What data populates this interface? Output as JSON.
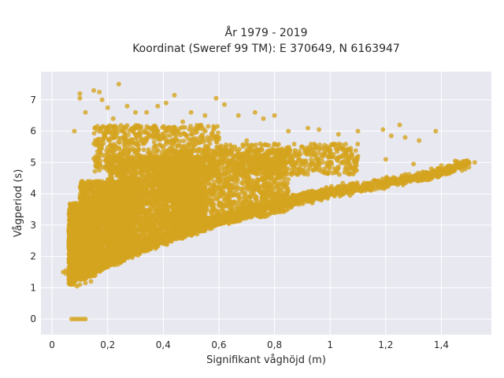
{
  "chart_data": {
    "type": "scatter",
    "title": "År 1979 - 2019",
    "subtitle": "Koordinat (Sweref 99 TM): E 370649, N 6163947",
    "xlabel": "Signifikant våghöjd (m)",
    "ylabel": "Vågperiod (s)",
    "xlim": [
      -0.04,
      1.58
    ],
    "ylim": [
      -0.5,
      7.9
    ],
    "x_ticks": [
      0,
      0.2,
      0.4,
      0.6,
      0.8,
      1,
      1.2,
      1.4
    ],
    "x_tick_labels": [
      "0",
      "0,2",
      "0,4",
      "0,6",
      "0,8",
      "1",
      "1,2",
      "1,4"
    ],
    "y_ticks": [
      0,
      1,
      2,
      3,
      4,
      5,
      6,
      7
    ],
    "y_tick_labels": [
      "0",
      "1",
      "2",
      "3",
      "4",
      "5",
      "6",
      "7"
    ],
    "grid": true,
    "legend": "none",
    "marker_color": "#D4A41F",
    "background": "#E8E8F1",
    "series": [
      {
        "points": [
          [
            0.07,
            0
          ],
          [
            0.08,
            0
          ],
          [
            0.09,
            0
          ],
          [
            0.1,
            0
          ],
          [
            0.11,
            0
          ],
          [
            0.12,
            0
          ],
          [
            0.04,
            1.5
          ],
          [
            0.05,
            1.45
          ],
          [
            0.05,
            1.55
          ],
          [
            0.06,
            1.5
          ],
          [
            0.07,
            1.2
          ],
          [
            0.08,
            1.1
          ],
          [
            0.09,
            1.05
          ],
          [
            0.1,
            1.1
          ],
          [
            0.12,
            1.15
          ],
          [
            0.14,
            1.2
          ],
          [
            0.07,
            1.8
          ],
          [
            0.08,
            2.2
          ],
          [
            0.09,
            2.6
          ],
          [
            0.1,
            3.0
          ],
          [
            0.11,
            3.3
          ],
          [
            0.12,
            3.6
          ],
          [
            0.08,
            6.0
          ],
          [
            0.1,
            7.2
          ],
          [
            0.1,
            7.05
          ],
          [
            0.12,
            6.6
          ],
          [
            0.15,
            7.3
          ],
          [
            0.17,
            7.25
          ],
          [
            0.18,
            7.0
          ],
          [
            0.2,
            6.75
          ],
          [
            0.22,
            6.4
          ],
          [
            0.24,
            7.5
          ],
          [
            0.27,
            6.8
          ],
          [
            0.3,
            6.6
          ],
          [
            0.34,
            6.6
          ],
          [
            0.38,
            6.8
          ],
          [
            0.41,
            6.9
          ],
          [
            0.44,
            7.15
          ],
          [
            0.47,
            6.3
          ],
          [
            0.5,
            6.6
          ],
          [
            0.55,
            6.5
          ],
          [
            0.59,
            7.05
          ],
          [
            0.62,
            6.85
          ],
          [
            0.67,
            6.5
          ],
          [
            0.73,
            6.6
          ],
          [
            0.76,
            6.4
          ],
          [
            0.8,
            6.5
          ],
          [
            0.85,
            6.0
          ],
          [
            0.92,
            6.1
          ],
          [
            0.96,
            6.05
          ],
          [
            1.03,
            5.9
          ],
          [
            1.1,
            6.0
          ],
          [
            1.19,
            6.05
          ],
          [
            1.22,
            5.85
          ],
          [
            1.25,
            6.2
          ],
          [
            1.27,
            5.8
          ],
          [
            1.32,
            5.7
          ],
          [
            1.38,
            6.0
          ],
          [
            0.17,
            5.4
          ],
          [
            0.22,
            5.5
          ],
          [
            0.3,
            5.6
          ],
          [
            0.4,
            5.8
          ],
          [
            0.5,
            5.9
          ],
          [
            0.6,
            5.8
          ],
          [
            0.7,
            5.7
          ],
          [
            0.8,
            5.6
          ],
          [
            0.9,
            5.5
          ],
          [
            1.0,
            5.3
          ],
          [
            1.1,
            5.2
          ],
          [
            1.2,
            5.1
          ],
          [
            1.3,
            4.95
          ],
          [
            1.4,
            4.9
          ],
          [
            1.45,
            5.05
          ],
          [
            1.5,
            5.0
          ],
          [
            1.02,
            4.0
          ],
          [
            1.08,
            4.1
          ],
          [
            1.14,
            4.2
          ],
          [
            1.2,
            4.35
          ],
          [
            1.26,
            4.45
          ],
          [
            1.32,
            4.55
          ],
          [
            1.38,
            4.7
          ],
          [
            1.42,
            4.75
          ],
          [
            1.46,
            4.85
          ],
          [
            1.52,
            5.0
          ]
        ],
        "bands": [
          {
            "x": [
              0.06,
              0.16
            ],
            "y": [
              1.1,
              3.7
            ],
            "n": 2200
          },
          {
            "x": [
              0.1,
              0.3
            ],
            "y": [
              1.4,
              4.4
            ],
            "n": 2000
          },
          {
            "x": [
              0.2,
              0.55
            ],
            "y": [
              2.0,
              5.2
            ],
            "n": 2200
          },
          {
            "x": [
              0.4,
              0.85
            ],
            "y": [
              3.0,
              5.4
            ],
            "n": 1500
          },
          {
            "x": [
              0.15,
              0.6
            ],
            "y": [
              4.7,
              6.2
            ],
            "n": 700
          },
          {
            "x": [
              0.6,
              1.1
            ],
            "y": [
              4.6,
              5.6
            ],
            "n": 500
          }
        ],
        "trend": [
          [
            0.1,
            1.3
          ],
          [
            0.2,
            1.75
          ],
          [
            0.3,
            2.15
          ],
          [
            0.4,
            2.5
          ],
          [
            0.5,
            2.8
          ],
          [
            0.6,
            3.1
          ],
          [
            0.7,
            3.35
          ],
          [
            0.8,
            3.6
          ],
          [
            0.9,
            3.82
          ],
          [
            1.0,
            4.0
          ],
          [
            1.1,
            4.15
          ],
          [
            1.2,
            4.3
          ],
          [
            1.3,
            4.45
          ],
          [
            1.4,
            4.65
          ],
          [
            1.5,
            4.95
          ]
        ]
      }
    ]
  }
}
